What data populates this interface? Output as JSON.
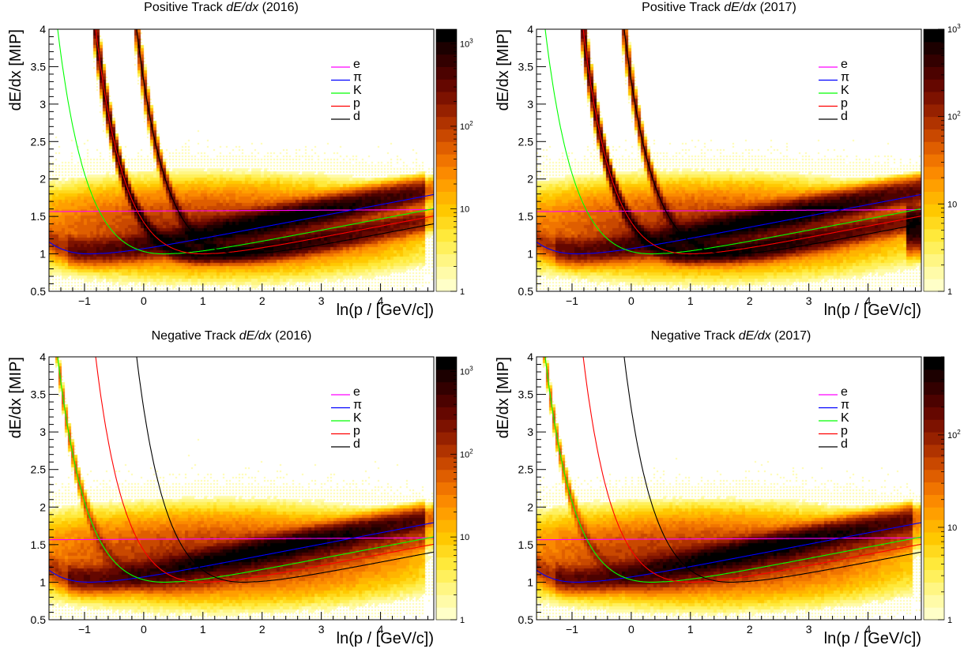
{
  "colors": {
    "e": "#ff00ff",
    "pi": "#0000ff",
    "K": "#00ff00",
    "p": "#ff0000",
    "d": "#000000",
    "palette": [
      "#ffffc8",
      "#fffba8",
      "#fff683",
      "#fff05c",
      "#ffe93a",
      "#ffd91d",
      "#ffc800",
      "#ffb400",
      "#ff9f00",
      "#fb8a00",
      "#f07400",
      "#df5e00",
      "#c94800",
      "#b03300",
      "#962100",
      "#7d1200",
      "#650700",
      "#4c0200",
      "#330000",
      "#1c0000",
      "#000000"
    ]
  },
  "legend_entries": [
    {
      "key": "e",
      "label": "e"
    },
    {
      "key": "pi",
      "label": "π"
    },
    {
      "key": "K",
      "label": "K"
    },
    {
      "key": "p",
      "label": "p"
    },
    {
      "key": "d",
      "label": "d"
    }
  ],
  "chart_data": [
    {
      "type": "heatmap",
      "title_main": "Positive Track ",
      "title_italic": "dE/dx",
      "title_year": " (2016)",
      "xlabel": "ln(p / [GeV/c])",
      "ylabel": "dE/dx [MIP]",
      "xlim": [
        -1.6,
        4.9
      ],
      "ylim": [
        0.5,
        4.0
      ],
      "xticks": [
        -1,
        0,
        1,
        2,
        3,
        4
      ],
      "xtick_labels": [
        "−1",
        "0",
        "1",
        "2",
        "3",
        "4"
      ],
      "yticks": [
        0.5,
        1,
        1.5,
        2,
        2.5,
        3,
        3.5,
        4
      ],
      "ytick_labels": [
        "0.5",
        "1",
        "1.5",
        "2",
        "2.5",
        "3",
        "3.5",
        "4"
      ],
      "zscale": "log",
      "zlim": [
        1,
        1500
      ],
      "zticks": [
        1,
        10,
        100,
        1000
      ],
      "zlabels": [
        {
          "base": "1",
          "exp": ""
        },
        {
          "base": "10",
          "exp": ""
        },
        {
          "base": "10",
          "exp": "2"
        },
        {
          "base": "10",
          "exp": "3"
        }
      ],
      "charge": "positive",
      "curves": [
        "e",
        "pi",
        "K",
        "p",
        "d"
      ],
      "legend_position": "top-right"
    },
    {
      "type": "heatmap",
      "title_main": "Positive Track ",
      "title_italic": "dE/dx",
      "title_year": " (2017)",
      "xlabel": "ln(p / [GeV/c])",
      "ylabel": "dE/dx [MIP]",
      "xlim": [
        -1.6,
        4.9
      ],
      "ylim": [
        0.5,
        4.0
      ],
      "xticks": [
        -1,
        0,
        1,
        2,
        3,
        4
      ],
      "xtick_labels": [
        "−1",
        "0",
        "1",
        "2",
        "3",
        "4"
      ],
      "yticks": [
        0.5,
        1,
        1.5,
        2,
        2.5,
        3,
        3.5,
        4
      ],
      "ytick_labels": [
        "0.5",
        "1",
        "1.5",
        "2",
        "2.5",
        "3",
        "3.5",
        "4"
      ],
      "zscale": "log",
      "zlim": [
        1,
        1000
      ],
      "zticks": [
        1,
        10,
        100,
        1000
      ],
      "zlabels": [
        {
          "base": "1",
          "exp": ""
        },
        {
          "base": "10",
          "exp": ""
        },
        {
          "base": "10",
          "exp": "2"
        },
        {
          "base": "10",
          "exp": "3"
        }
      ],
      "charge": "positive",
      "curves": [
        "e",
        "pi",
        "K",
        "p",
        "d"
      ],
      "legend_position": "top-right"
    },
    {
      "type": "heatmap",
      "title_main": "Negative Track ",
      "title_italic": "dE/dx",
      "title_year": " (2016)",
      "xlabel": "ln(p / [GeV/c])",
      "ylabel": "dE/dx [MIP]",
      "xlim": [
        -1.6,
        4.9
      ],
      "ylim": [
        0.5,
        4.0
      ],
      "xticks": [
        -1,
        0,
        1,
        2,
        3,
        4
      ],
      "xtick_labels": [
        "−1",
        "0",
        "1",
        "2",
        "3",
        "4"
      ],
      "yticks": [
        0.5,
        1,
        1.5,
        2,
        2.5,
        3,
        3.5,
        4
      ],
      "ytick_labels": [
        "0.5",
        "1",
        "1.5",
        "2",
        "2.5",
        "3",
        "3.5",
        "4"
      ],
      "zscale": "log",
      "zlim": [
        1,
        1500
      ],
      "zticks": [
        1,
        10,
        100,
        1000
      ],
      "zlabels": [
        {
          "base": "1",
          "exp": ""
        },
        {
          "base": "10",
          "exp": ""
        },
        {
          "base": "10",
          "exp": "2"
        },
        {
          "base": "10",
          "exp": "3"
        }
      ],
      "charge": "negative",
      "curves": [
        "e",
        "pi",
        "K",
        "p",
        "d"
      ],
      "legend_position": "top-right"
    },
    {
      "type": "heatmap",
      "title_main": "Negative Track ",
      "title_italic": "dE/dx",
      "title_year": " (2017)",
      "xlabel": "ln(p / [GeV/c])",
      "ylabel": "dE/dx [MIP]",
      "xlim": [
        -1.6,
        4.9
      ],
      "ylim": [
        0.5,
        4.0
      ],
      "xticks": [
        -1,
        0,
        1,
        2,
        3,
        4
      ],
      "xtick_labels": [
        "−1",
        "0",
        "1",
        "2",
        "3",
        "4"
      ],
      "yticks": [
        0.5,
        1,
        1.5,
        2,
        2.5,
        3,
        3.5,
        4
      ],
      "ytick_labels": [
        "0.5",
        "1",
        "1.5",
        "2",
        "2.5",
        "3",
        "3.5",
        "4"
      ],
      "zscale": "log",
      "zlim": [
        1,
        700
      ],
      "zticks": [
        1,
        10,
        100
      ],
      "zlabels": [
        {
          "base": "1",
          "exp": ""
        },
        {
          "base": "10",
          "exp": ""
        },
        {
          "base": "10",
          "exp": "2"
        }
      ],
      "charge": "negative",
      "curves": [
        "e",
        "pi",
        "K",
        "p",
        "d"
      ],
      "legend_position": "top-right"
    }
  ]
}
